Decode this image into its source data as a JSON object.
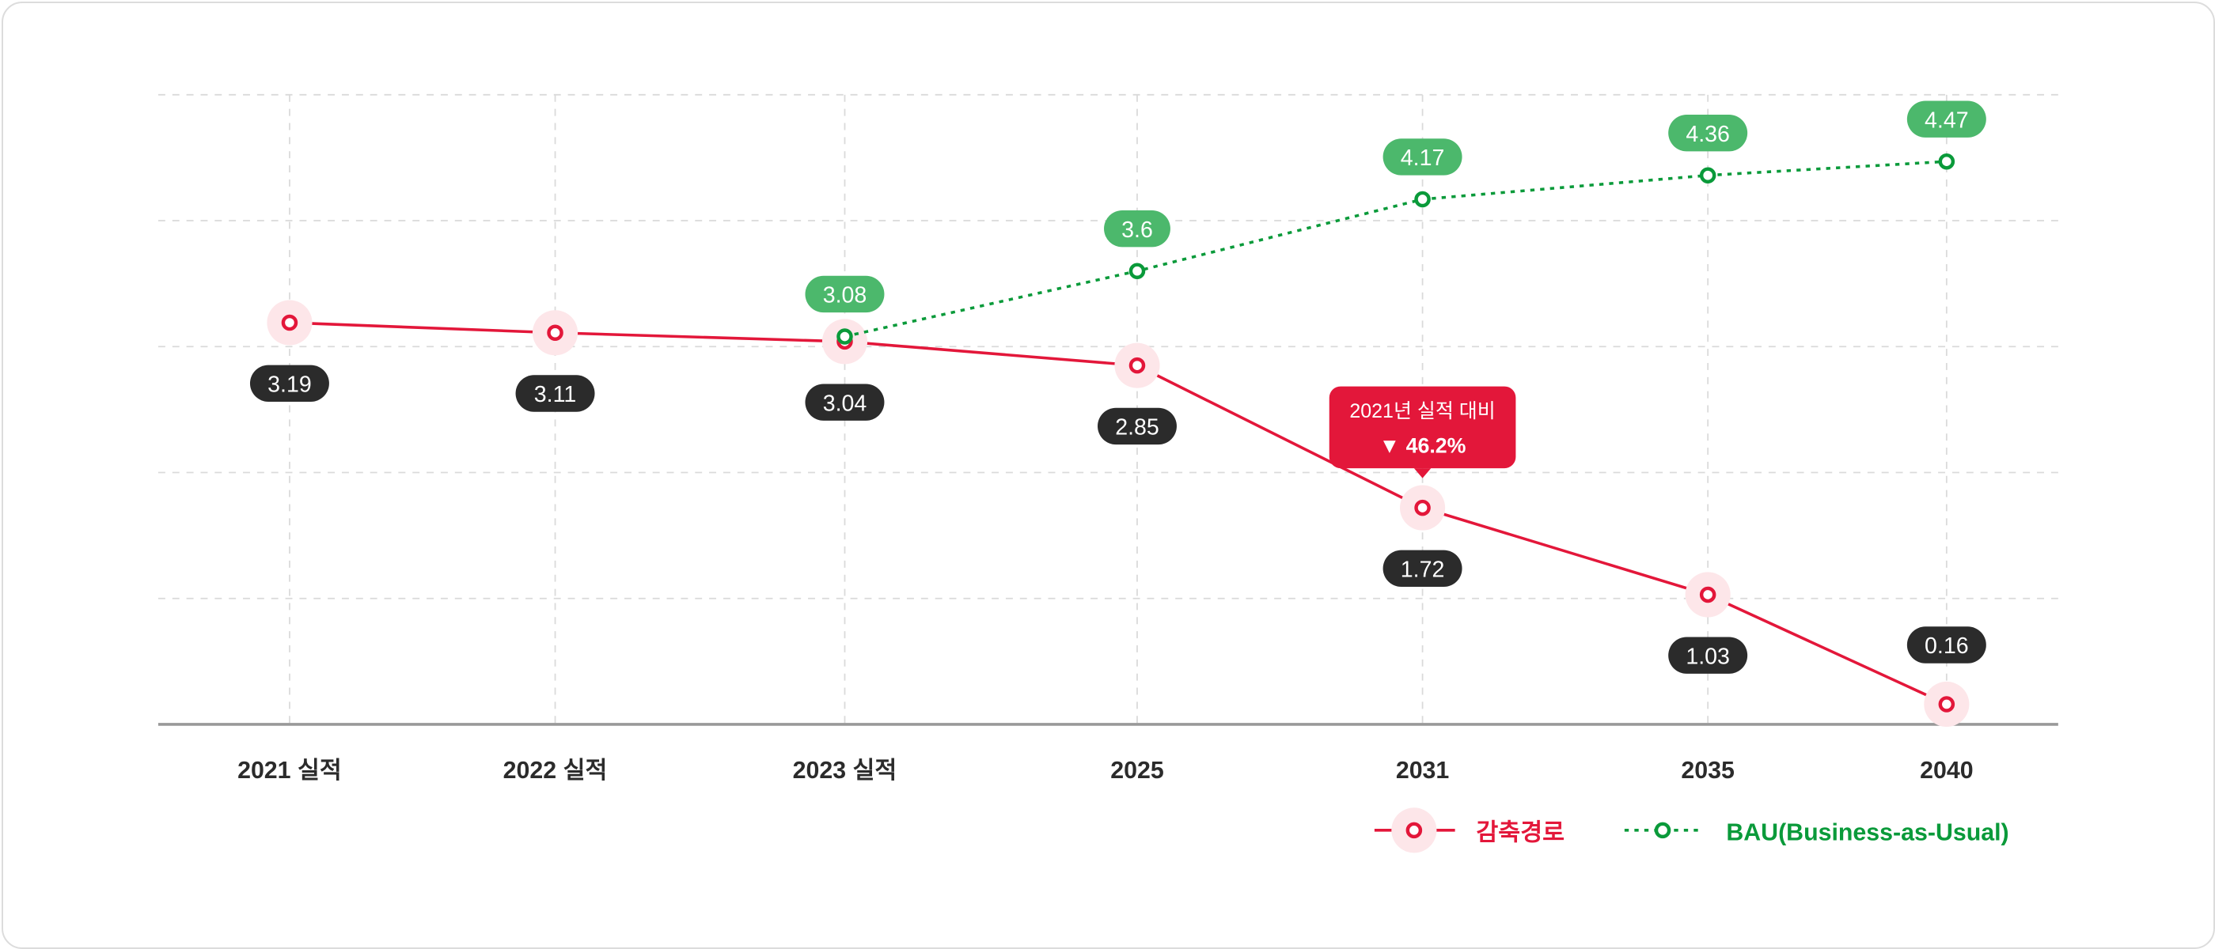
{
  "chart_data": {
    "type": "line",
    "categories": [
      "2021 실적",
      "2022 실적",
      "2023 실적",
      "2025",
      "2031",
      "2035",
      "2040"
    ],
    "ylim": [
      0,
      5
    ],
    "grid": true,
    "legend_position": "bottom-right",
    "series": [
      {
        "name": "감축경로",
        "color": "#e3173a",
        "style": "solid",
        "values": [
          3.19,
          3.11,
          3.04,
          2.85,
          1.72,
          1.03,
          0.16
        ],
        "labels": [
          "3.19",
          "3.11",
          "3.04",
          "2.85",
          "1.72",
          "1.03",
          "0.16"
        ]
      },
      {
        "name": "BAU(Business-as-Usual)",
        "color": "#0a9a3a",
        "style": "dotted",
        "values": [
          null,
          null,
          3.08,
          3.6,
          4.17,
          4.36,
          4.47
        ],
        "labels": [
          null,
          null,
          "3.08",
          "3.6",
          "4.17",
          "4.36",
          "4.47"
        ]
      }
    ],
    "annotation": {
      "category": "2031",
      "line1": "2021년 실적 대비",
      "line2": "▼ 46.2%",
      "color": "#e3173a"
    }
  }
}
